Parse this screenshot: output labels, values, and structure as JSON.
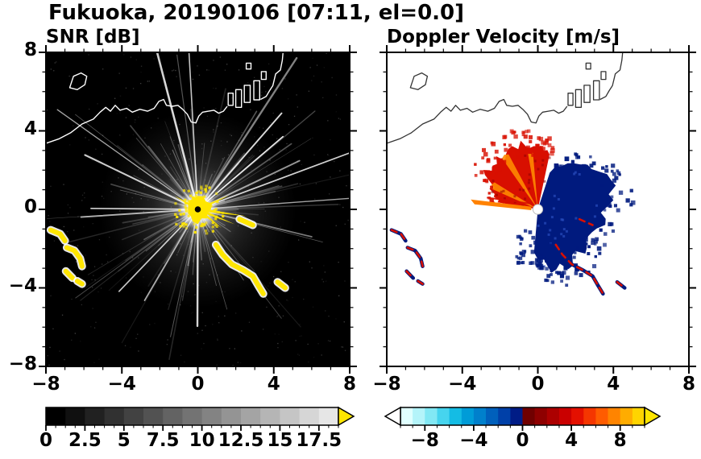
{
  "figure": {
    "title": "Fukuoka, 20190106 [07:11, el=0.0]",
    "station": "Fukuoka",
    "date": "20190106",
    "time": "07:11",
    "elevation": "0.0"
  },
  "chart_data": [
    {
      "type": "heatmap",
      "id": "snr",
      "title": "SNR [dB]",
      "xlim": [
        -8,
        8
      ],
      "ylim": [
        -8,
        8
      ],
      "xtick_values": [
        -8,
        -4,
        0,
        4,
        8
      ],
      "xtick_labels": [
        "−8",
        "−4",
        "0",
        "4",
        "8"
      ],
      "ytick_values": [
        8,
        4,
        0,
        -4,
        -8
      ],
      "ytick_labels": [
        "8",
        "4",
        "0",
        "−4",
        "−8"
      ],
      "minor_tick_step": 1,
      "grid": false,
      "background_color": "#000000",
      "colorbar": {
        "orientation": "horizontal",
        "min": 0,
        "max": 18.75,
        "segment_step": 1.25,
        "tick_values": [
          0,
          2.5,
          5,
          7.5,
          10,
          12.5,
          15,
          17.5
        ],
        "tick_labels": [
          "0",
          "2.5",
          "5",
          "7.5",
          "10",
          "12.5",
          "15",
          "17.5"
        ],
        "start_color": "#000000",
        "end_color": "#e6e6e6",
        "over_arrow_color": "#ffe600"
      },
      "content_summary": "PPI radar signal-to-noise ratio: saturated yellow echo cluster at the radar site (0,0), many thin white radial interference spokes on a black background, yellow ship-track echoes to the southeast and near the west edge, coastline drawn in white across the north."
    },
    {
      "type": "heatmap",
      "id": "doppler",
      "title": "Doppler Velocity [m/s]",
      "xlim": [
        -8,
        8
      ],
      "ylim": [
        -8,
        8
      ],
      "xtick_values": [
        -8,
        -4,
        0,
        4,
        8
      ],
      "xtick_labels": [
        "−8",
        "−4",
        "0",
        "4",
        "8"
      ],
      "ytick_values": [
        8,
        4,
        0,
        -4,
        -8
      ],
      "ytick_labels": [
        "8",
        "4",
        "0",
        "−4",
        "−8"
      ],
      "minor_tick_step": 1,
      "grid": false,
      "background_color": "#ffffff",
      "colorbar": {
        "orientation": "horizontal",
        "min": -10,
        "max": 10,
        "segment_step": 1,
        "tick_values": [
          -8,
          -4,
          0,
          4,
          8
        ],
        "tick_labels": [
          "−8",
          "−4",
          "0",
          "4",
          "8"
        ],
        "colors": [
          "#e0ffff",
          "#b4f4fa",
          "#82e8f4",
          "#46d4ee",
          "#14bce4",
          "#009cd8",
          "#0080cc",
          "#0060bc",
          "#0040a8",
          "#001c86",
          "#700000",
          "#8e0000",
          "#ac0000",
          "#ca0000",
          "#e41000",
          "#f53600",
          "#ff5c00",
          "#ff8400",
          "#ffac00",
          "#ffd400"
        ],
        "under_arrow_color": "#ffffff",
        "over_arrow_color": "#ffe600"
      },
      "content_summary": "Doppler velocity fan around the radar: positive (red/orange) velocities in a wedge to the north-west, negative (dark navy) velocities in a broad speckled wedge from east to south, an orange radial streak to the west, and small red/blue ship echoes matching the SNR panel."
    }
  ],
  "render": {
    "radar_center": [
      0,
      0
    ],
    "coastline": {
      "stroke_snr": "#ffffff",
      "stroke_doppler": "#333333",
      "open_paths": [
        [
          [
            -8.2,
            3.3
          ],
          [
            -7.3,
            3.6
          ],
          [
            -6.7,
            3.9
          ],
          [
            -6.1,
            4.35
          ],
          [
            -5.5,
            4.6
          ],
          [
            -5.15,
            4.95
          ],
          [
            -4.85,
            5.2
          ],
          [
            -4.6,
            5.0
          ],
          [
            -4.35,
            5.3
          ],
          [
            -4.1,
            5.05
          ],
          [
            -3.75,
            5.15
          ],
          [
            -3.45,
            4.95
          ],
          [
            -3.05,
            5.1
          ],
          [
            -2.65,
            5.0
          ],
          [
            -2.3,
            5.15
          ],
          [
            -2.05,
            5.5
          ],
          [
            -1.8,
            5.6
          ],
          [
            -1.65,
            5.3
          ],
          [
            -1.35,
            5.25
          ],
          [
            -1.05,
            5.3
          ],
          [
            -0.8,
            5.1
          ],
          [
            -0.55,
            4.85
          ],
          [
            -0.35,
            4.45
          ],
          [
            -0.1,
            4.4
          ],
          [
            0.05,
            4.75
          ],
          [
            0.25,
            4.95
          ],
          [
            0.55,
            5.0
          ],
          [
            0.85,
            5.05
          ],
          [
            1.1,
            4.9
          ],
          [
            1.35,
            5.0
          ],
          [
            1.55,
            5.25
          ]
        ],
        [
          [
            3.3,
            5.6
          ],
          [
            3.6,
            5.75
          ],
          [
            3.78,
            6.05
          ],
          [
            3.95,
            6.3
          ],
          [
            4.1,
            6.9
          ],
          [
            4.35,
            7.1
          ],
          [
            4.45,
            7.6
          ],
          [
            4.5,
            8.1
          ]
        ]
      ],
      "closed_paths": [
        [
          [
            -6.75,
            6.2
          ],
          [
            -6.55,
            6.78
          ],
          [
            -6.15,
            6.95
          ],
          [
            -5.85,
            6.78
          ],
          [
            -5.95,
            6.35
          ],
          [
            -6.35,
            6.1
          ]
        ],
        [
          [
            1.6,
            5.3
          ],
          [
            1.6,
            5.92
          ],
          [
            1.86,
            5.92
          ],
          [
            1.86,
            5.3
          ]
        ],
        [
          [
            2.0,
            5.2
          ],
          [
            2.0,
            6.1
          ],
          [
            2.3,
            6.1
          ],
          [
            2.3,
            5.2
          ]
        ],
        [
          [
            2.45,
            5.45
          ],
          [
            2.45,
            6.32
          ],
          [
            2.76,
            6.32
          ],
          [
            2.76,
            5.45
          ]
        ],
        [
          [
            2.95,
            5.58
          ],
          [
            2.95,
            6.55
          ],
          [
            3.26,
            6.55
          ],
          [
            3.26,
            5.58
          ]
        ],
        [
          [
            3.35,
            6.62
          ],
          [
            3.35,
            7.02
          ],
          [
            3.6,
            7.02
          ],
          [
            3.6,
            6.62
          ]
        ],
        [
          [
            2.55,
            7.15
          ],
          [
            2.55,
            7.45
          ],
          [
            2.8,
            7.45
          ],
          [
            2.8,
            7.15
          ]
        ]
      ]
    },
    "snr": {
      "seed": 7,
      "noise_count": 420,
      "streaks": {
        "count": 130,
        "long_count": 16,
        "color": "#ffffff"
      },
      "glow_color": "#ffffff",
      "echo_color": "#ffe600",
      "spikes": [
        {
          "deg": -8,
          "len": 2.6
        },
        {
          "deg": -22,
          "len": 2.1
        },
        {
          "deg": -38,
          "len": 1.6
        },
        {
          "deg": 24,
          "len": 1.8
        },
        {
          "deg": 150,
          "len": 1.4
        }
      ],
      "center_dot_color": "#000000"
    },
    "ship_tracks": [
      {
        "pts": [
          [
            -7.75,
            -1.05
          ],
          [
            -7.25,
            -1.25
          ],
          [
            -7.0,
            -1.6
          ]
        ]
      },
      {
        "pts": [
          [
            -6.9,
            -1.95
          ],
          [
            -6.5,
            -2.1
          ],
          [
            -6.2,
            -2.5
          ],
          [
            -6.1,
            -2.9
          ]
        ]
      },
      {
        "pts": [
          [
            -6.95,
            -3.15
          ],
          [
            -6.6,
            -3.5
          ]
        ]
      },
      {
        "pts": [
          [
            -6.35,
            -3.65
          ],
          [
            -6.1,
            -3.8
          ]
        ]
      },
      {
        "pts": [
          [
            0.95,
            -1.8
          ],
          [
            1.3,
            -2.3
          ],
          [
            1.8,
            -2.8
          ],
          [
            2.4,
            -3.1
          ],
          [
            2.9,
            -3.4
          ],
          [
            3.2,
            -3.9
          ],
          [
            3.45,
            -4.3
          ]
        ]
      },
      {
        "pts": [
          [
            4.2,
            -3.7
          ],
          [
            4.6,
            -4.0
          ]
        ]
      },
      {
        "pts": [
          [
            2.2,
            -0.5
          ],
          [
            2.9,
            -0.8
          ]
        ]
      }
    ],
    "doppler": {
      "seed": 5,
      "red_fan": {
        "color": "#d80f00",
        "edge": [
          [
            78,
            2.9
          ],
          [
            84,
            3.15
          ],
          [
            90,
            3.4
          ],
          [
            97,
            3.2
          ],
          [
            104,
            3.6
          ],
          [
            112,
            3.5
          ],
          [
            120,
            3.3
          ],
          [
            128,
            3.55
          ],
          [
            136,
            3.2
          ],
          [
            144,
            3.45
          ],
          [
            150,
            2.95
          ],
          [
            157,
            2.7
          ],
          [
            164,
            2.45
          ],
          [
            170,
            2.15
          ]
        ]
      },
      "orange_wedges": [
        {
          "a1": 148,
          "a2": 156,
          "r": 2.7
        },
        {
          "a1": 118,
          "a2": 125,
          "r": 3.3
        },
        {
          "a1": 95,
          "a2": 100,
          "r": 3.0
        }
      ],
      "orange_color": "#ff8a00",
      "blue_fan": {
        "color": "#001a7e",
        "edge": [
          [
            72,
            2.1
          ],
          [
            62,
            2.5
          ],
          [
            52,
            3.0
          ],
          [
            42,
            3.5
          ],
          [
            32,
            3.8
          ],
          [
            22,
            4.0
          ],
          [
            12,
            3.9
          ],
          [
            2,
            3.75
          ],
          [
            -8,
            3.5
          ],
          [
            -18,
            3.2
          ],
          [
            -28,
            3.0
          ],
          [
            -38,
            3.25
          ],
          [
            -48,
            3.05
          ],
          [
            -58,
            3.45
          ],
          [
            -68,
            3.15
          ],
          [
            -78,
            3.3
          ],
          [
            -88,
            2.6
          ],
          [
            -95,
            2.2
          ]
        ]
      },
      "blue_fleck_color": "#2f55c8",
      "red_fleck_color": "#8f0000",
      "south_speckle_box": {
        "xmin": -1.3,
        "xmax": 0.7,
        "ymin": -2.9,
        "ymax": -1.0
      },
      "west_streak": {
        "color": "#ff8200",
        "pts": [
          [
            -0.35,
            0.14
          ],
          [
            -3.55,
            0.5
          ],
          [
            -3.35,
            0.26
          ],
          [
            -0.35,
            -0.04
          ]
        ]
      },
      "ship_red": "#d80f00",
      "ship_blue": "#001a7e",
      "center_dot_color": "#ffffff"
    }
  }
}
